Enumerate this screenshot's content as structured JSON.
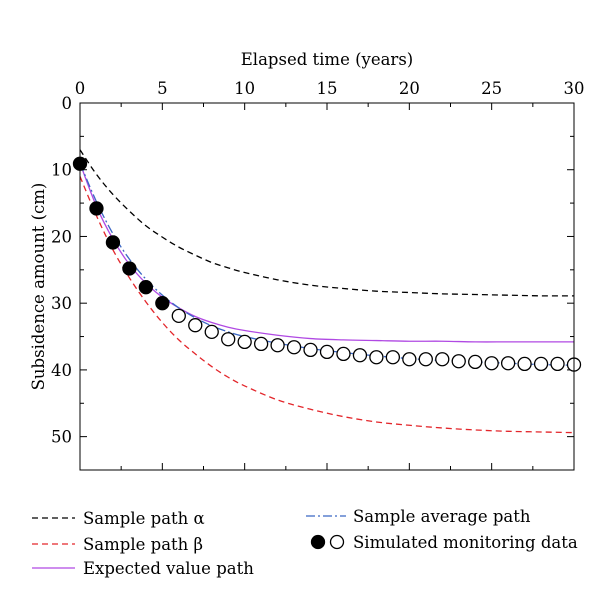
{
  "chart_data": {
    "type": "line",
    "xlabel": "Elapsed time (years)",
    "ylabel": "Subsidence amount (cm)",
    "x_axis": {
      "position": "top",
      "lim": [
        0,
        30
      ],
      "ticks": [
        0,
        5,
        10,
        15,
        20,
        25,
        30
      ],
      "minor_ticks": [
        2.5,
        7.5,
        12.5,
        17.5,
        22.5,
        27.5
      ]
    },
    "y_axis": {
      "position": "left",
      "inverted": true,
      "lim": [
        0,
        55
      ],
      "ticks": [
        0,
        10,
        20,
        30,
        40,
        50
      ],
      "minor_ticks": [
        5,
        15,
        25,
        35,
        45
      ]
    },
    "grid": false,
    "legend_placement": "bottom",
    "x": [
      0,
      1,
      2,
      3,
      4,
      5,
      6,
      7,
      8,
      9,
      10,
      12,
      14,
      16,
      18,
      20,
      22,
      24,
      26,
      28,
      30
    ],
    "series": [
      {
        "name": "Sample path α",
        "style": "dashed",
        "color": "#000000",
        "values": [
          7.0,
          10.7,
          13.7,
          16.2,
          18.4,
          20.1,
          21.6,
          22.8,
          23.9,
          24.7,
          25.4,
          26.5,
          27.3,
          27.8,
          28.2,
          28.4,
          28.6,
          28.7,
          28.8,
          28.9,
          28.9
        ]
      },
      {
        "name": "Sample path β",
        "style": "dashed",
        "color": "#e3262b",
        "values": [
          11.0,
          16.9,
          22.0,
          26.2,
          29.8,
          32.9,
          35.5,
          37.6,
          39.5,
          41.1,
          42.4,
          44.5,
          45.9,
          47.0,
          47.8,
          48.3,
          48.7,
          49.0,
          49.2,
          49.3,
          49.4
        ]
      },
      {
        "name": "Expected value path",
        "style": "solid",
        "color": "#b049e3",
        "values": [
          9.0,
          15.5,
          20.4,
          24.2,
          27.0,
          29.1,
          30.7,
          32.0,
          32.9,
          33.6,
          34.1,
          34.8,
          35.3,
          35.5,
          35.6,
          35.7,
          35.7,
          35.8,
          35.8,
          35.8,
          35.8
        ]
      },
      {
        "name": "Sample average path",
        "style": "dash-dot",
        "color": "#3b67c4",
        "values": [
          9.0,
          14.8,
          19.6,
          23.4,
          26.4,
          28.8,
          30.7,
          32.2,
          33.4,
          34.3,
          35.0,
          36.0,
          36.8,
          37.4,
          37.9,
          38.3,
          38.6,
          38.8,
          39.0,
          39.2,
          39.3
        ]
      }
    ],
    "monitoring_data": {
      "name": "Simulated monitoring data",
      "marker": "circle",
      "color": "#000000",
      "x": [
        0,
        1,
        2,
        3,
        4,
        5,
        6,
        7,
        8,
        9,
        10,
        11,
        12,
        13,
        14,
        15,
        16,
        17,
        18,
        19,
        20,
        21,
        22,
        23,
        24,
        25,
        26,
        27,
        28,
        29,
        30
      ],
      "values": [
        9.1,
        15.8,
        20.9,
        24.8,
        27.6,
        30.0,
        31.9,
        33.3,
        34.3,
        35.4,
        35.8,
        36.1,
        36.3,
        36.6,
        37.0,
        37.3,
        37.6,
        37.8,
        38.1,
        38.1,
        38.4,
        38.4,
        38.4,
        38.7,
        38.8,
        39.0,
        39.0,
        39.1,
        39.1,
        39.1,
        39.2
      ],
      "fill": [
        "filled",
        "filled",
        "filled",
        "filled",
        "filled",
        "filled",
        "open",
        "open",
        "open",
        "open",
        "open",
        "open",
        "open",
        "open",
        "open",
        "open",
        "open",
        "open",
        "open",
        "open",
        "open",
        "open",
        "open",
        "open",
        "open",
        "open",
        "open",
        "open",
        "open",
        "open",
        "open"
      ]
    }
  }
}
